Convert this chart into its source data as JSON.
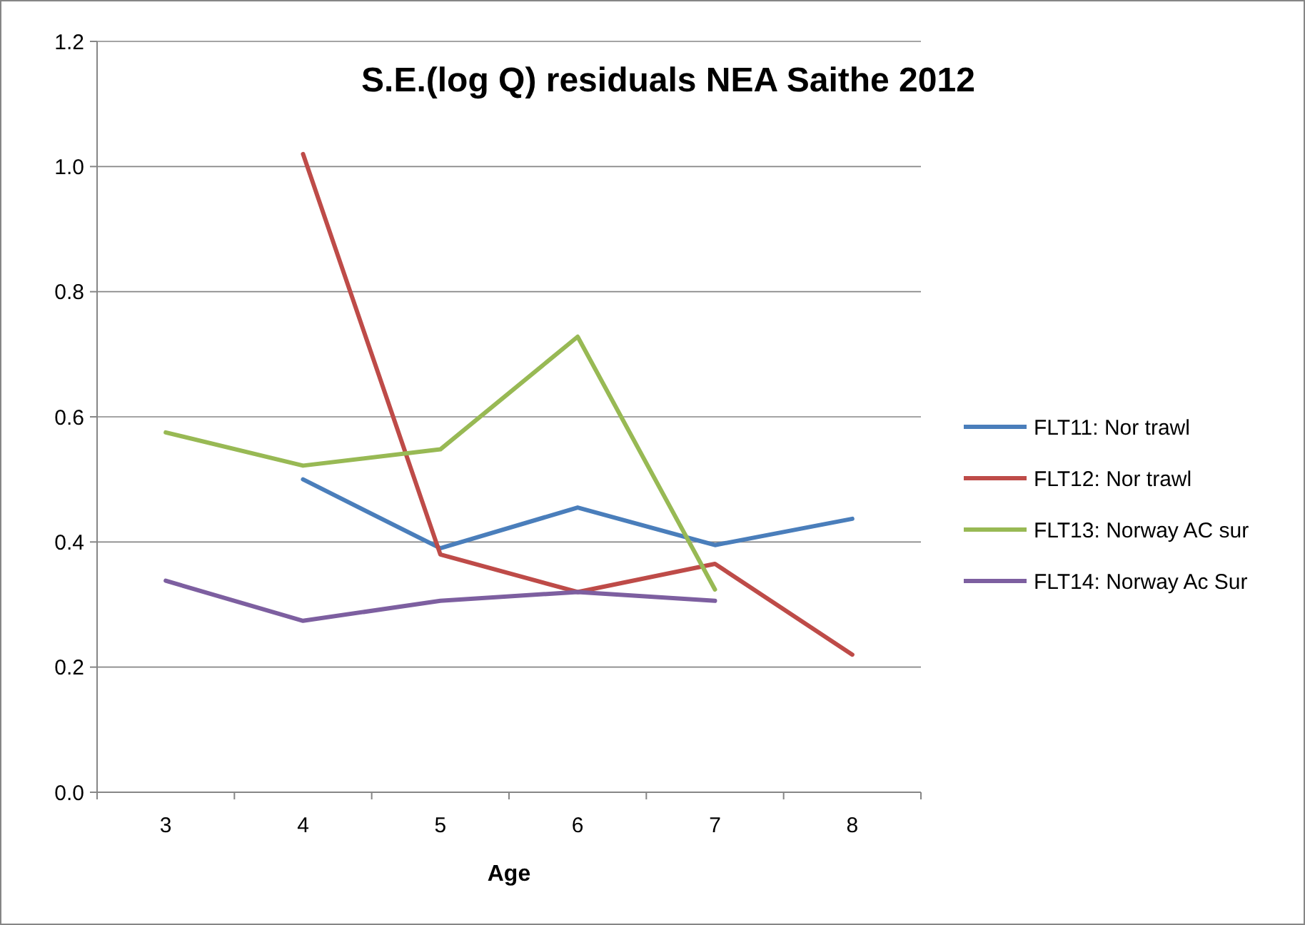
{
  "chart_data": {
    "type": "line",
    "title": "S.E.(log Q) residuals NEA Saithe 2012",
    "xlabel": "Age",
    "categories": [
      "3",
      "4",
      "5",
      "6",
      "7",
      "8"
    ],
    "series": [
      {
        "name": "FLT11: Nor trawl",
        "color": "#4a7ebb",
        "values": [
          null,
          0.5,
          0.39,
          0.455,
          0.395,
          0.437
        ]
      },
      {
        "name": "FLT12: Nor trawl",
        "color": "#be4b48",
        "values": [
          null,
          1.02,
          0.38,
          0.32,
          0.365,
          0.22
        ]
      },
      {
        "name": "FLT13: Norway AC sur",
        "color": "#98b954",
        "values": [
          0.575,
          0.522,
          0.548,
          0.728,
          0.324,
          null
        ]
      },
      {
        "name": "FLT14: Norway Ac Sur",
        "color": "#7d5fa0",
        "values": [
          0.338,
          0.274,
          0.306,
          0.32,
          0.306,
          null
        ]
      }
    ],
    "ylim": [
      0,
      1.2
    ],
    "yticks": [
      {
        "value": 0,
        "label": "0.0"
      },
      {
        "value": 0.2,
        "label": "0.2"
      },
      {
        "value": 0.4,
        "label": "0.4"
      },
      {
        "value": 0.6,
        "label": "0.6"
      },
      {
        "value": 0.8,
        "label": "0.8"
      },
      {
        "value": 1,
        "label": "1.0"
      },
      {
        "value": 1.2,
        "label": "1.2"
      }
    ],
    "grid": "y",
    "legend": "right"
  }
}
